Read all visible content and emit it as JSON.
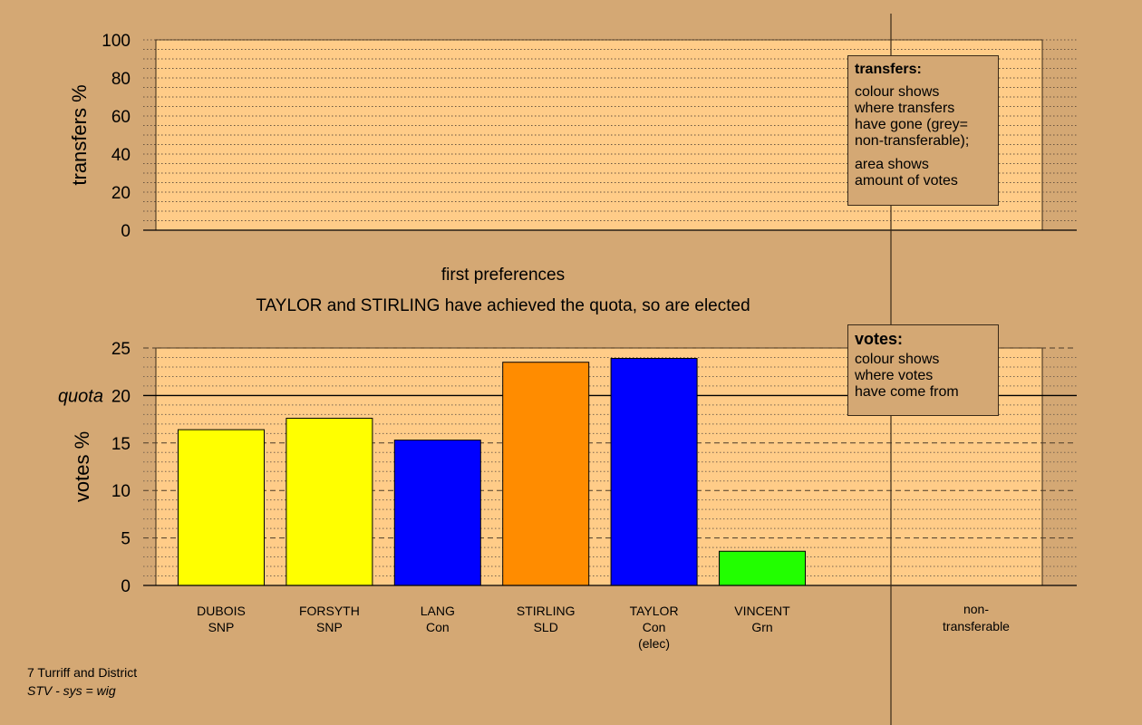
{
  "header": {
    "stage_label": "first preferences",
    "status_text": "TAYLOR and STIRLING have achieved the quota, so are elected"
  },
  "legend_transfers": {
    "title": "transfers:",
    "lines_1": [
      "colour shows",
      "where transfers",
      "have gone (grey=",
      "non-transferable);"
    ],
    "lines_2": [
      "area shows",
      "amount of votes"
    ]
  },
  "legend_votes": {
    "title": "votes:",
    "lines": [
      "colour shows",
      "where votes",
      "have come from"
    ]
  },
  "footer": {
    "line1": "7 Turriff and District",
    "line2": "STV - sys = wig"
  },
  "colors": {
    "background": "#d4a874",
    "plot_area": "#ffcc88",
    "SNP": "#ffff00",
    "Con": "#0000ff",
    "SLD": "#ff8c00",
    "Grn": "#22ff00"
  },
  "chart_data": [
    {
      "type": "bar",
      "id": "transfers",
      "ylabel": "transfers %",
      "ylim": [
        0,
        100
      ],
      "yticks": [
        0,
        20,
        40,
        60,
        80,
        100
      ],
      "grid": "dotted",
      "series": []
    },
    {
      "type": "bar",
      "id": "votes",
      "ylabel": "votes %",
      "ylim": [
        0,
        25
      ],
      "yticks": [
        0,
        5,
        10,
        15,
        20,
        25
      ],
      "quota": 20,
      "quota_label": "quota",
      "grid": "dashed",
      "categories": [
        {
          "name": "DUBOIS",
          "party": "SNP",
          "note": "",
          "value": 16.4,
          "color": "#ffff00"
        },
        {
          "name": "FORSYTH",
          "party": "SNP",
          "note": "",
          "value": 17.6,
          "color": "#ffff00"
        },
        {
          "name": "LANG",
          "party": "Con",
          "note": "",
          "value": 15.3,
          "color": "#0000ff"
        },
        {
          "name": "STIRLING",
          "party": "SLD",
          "note": "",
          "value": 23.5,
          "color": "#ff8c00"
        },
        {
          "name": "TAYLOR",
          "party": "Con",
          "note": "(elec)",
          "value": 23.9,
          "color": "#0000ff"
        },
        {
          "name": "VINCENT",
          "party": "Grn",
          "note": "",
          "value": 3.6,
          "color": "#22ff00"
        }
      ],
      "extra_category": {
        "line1": "non-",
        "line2": "transferable"
      }
    }
  ]
}
